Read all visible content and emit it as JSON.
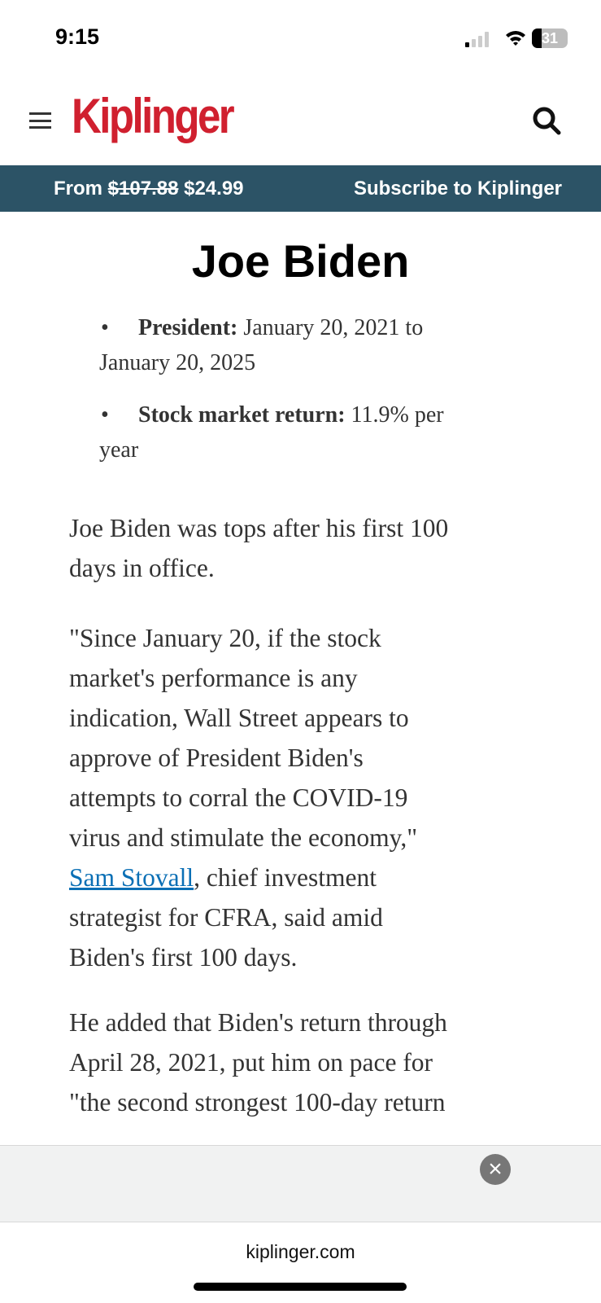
{
  "status_bar": {
    "time": "9:15",
    "battery": "31",
    "signal_bars": 1
  },
  "header": {
    "logo": "Kiplinger",
    "menu_icon": "hamburger-icon",
    "search_icon": "search-icon",
    "brand_color": "#d0202f"
  },
  "promo": {
    "from": "From",
    "old_price": "$107.88",
    "new_price": "$24.99",
    "subscribe": "Subscribe to Kiplinger",
    "bg": "#2c5366"
  },
  "article": {
    "title": "Joe Biden",
    "bullets": [
      {
        "label": "President:",
        "lines": [
          " January 20, 2021 to",
          "January 20, 2025"
        ]
      },
      {
        "label": "Stock market return:",
        "lines": [
          " 11.9% per",
          "year"
        ]
      }
    ],
    "p1": [
      "Joe Biden was tops after his first 100",
      "days in office."
    ],
    "p2": [
      "\"Since January 20, if the stock",
      "market's performance is any",
      "indication, Wall Street appears to",
      "approve of President Biden's",
      "attempts to corral the COVID-19",
      "virus and stimulate the economy,\""
    ],
    "p2_link": "Sam Stovall",
    "p2_rest": [
      ", chief investment",
      "strategist for CFRA, said amid",
      "Biden's first 100 days."
    ],
    "p3": [
      "He added that Biden's return through",
      "April 28, 2021, put him on pace for",
      "\"the second strongest 100-day return"
    ]
  },
  "ad": {
    "close_icon": "close-icon"
  },
  "browser": {
    "url": "kiplinger.com"
  }
}
